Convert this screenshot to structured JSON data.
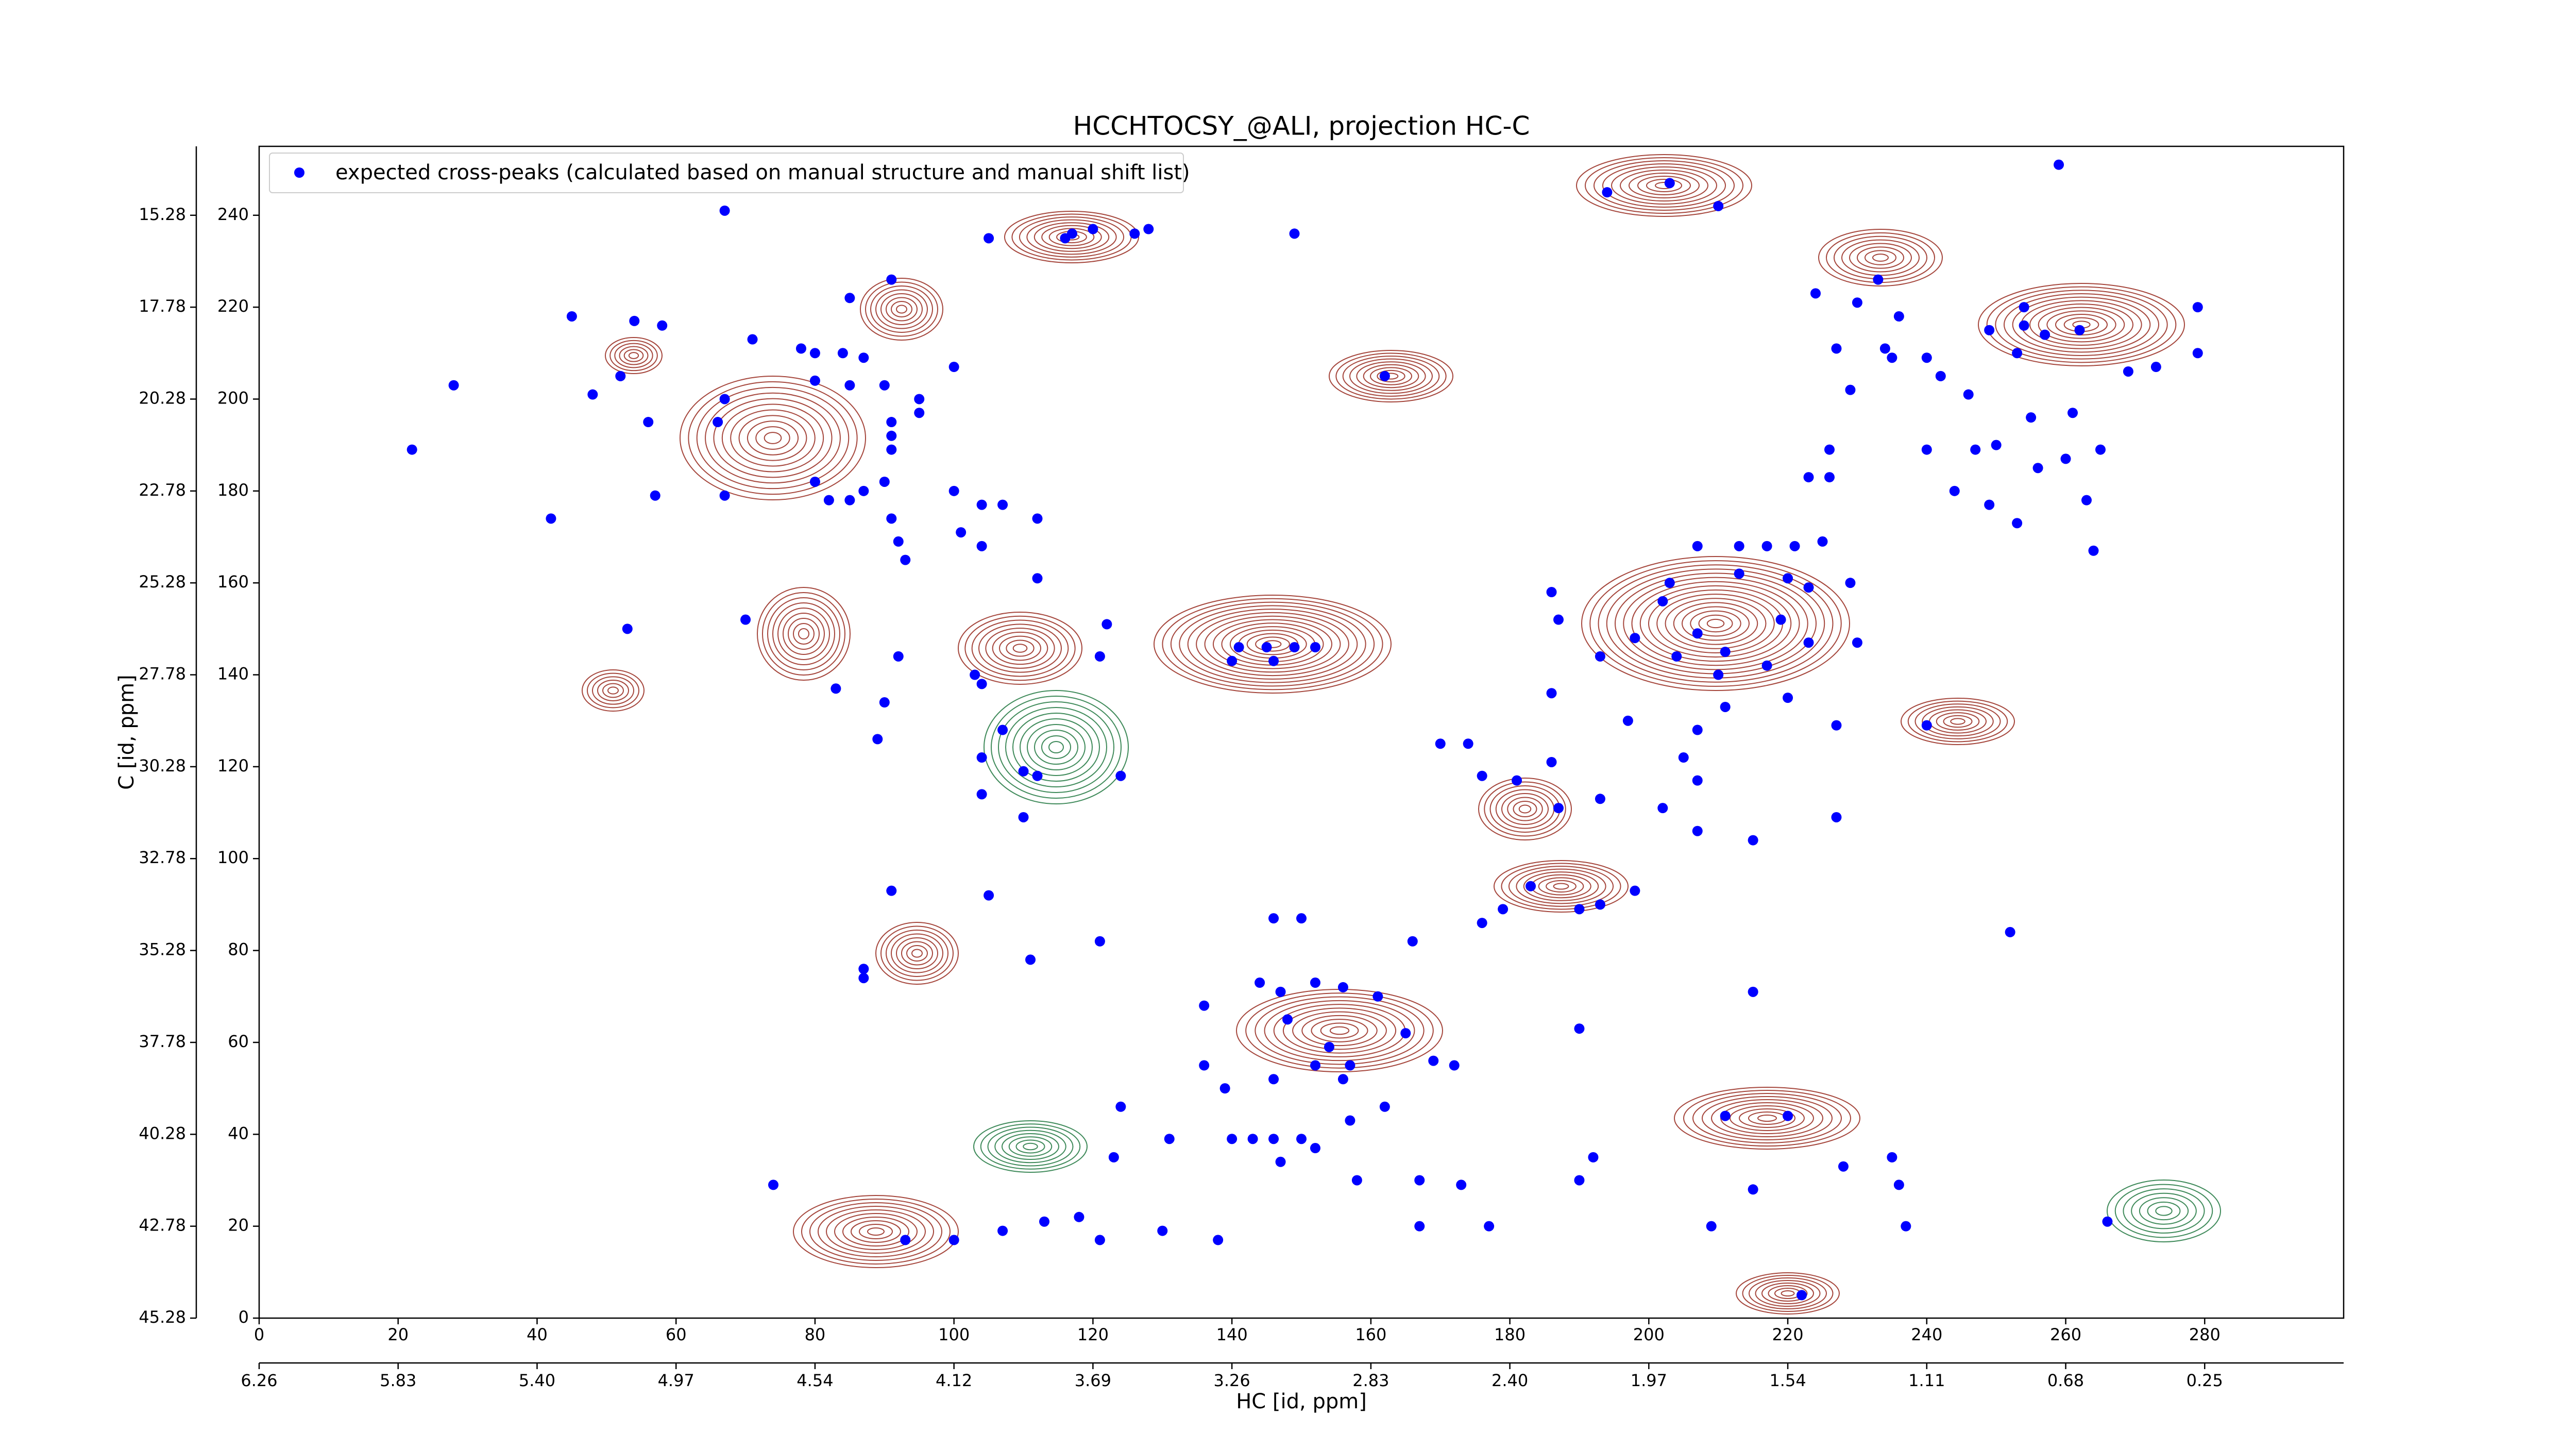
{
  "chart_data": {
    "type": "scatter",
    "title": "HCCHTOCSY_@ALI, projection HC-C",
    "xlabel": "HC [id, ppm]",
    "ylabel": "C [id, ppm]",
    "xlim": [
      0,
      300
    ],
    "ylim": [
      0,
      255
    ],
    "xticks": [
      0,
      20,
      40,
      60,
      80,
      100,
      120,
      140,
      160,
      180,
      200,
      220,
      240,
      260,
      280
    ],
    "yticks": [
      0,
      20,
      40,
      60,
      80,
      100,
      120,
      140,
      160,
      180,
      200,
      220,
      240
    ],
    "x2ticks": [
      {
        "value": 0,
        "label": "6.26"
      },
      {
        "value": 20,
        "label": "5.83"
      },
      {
        "value": 40,
        "label": "5.40"
      },
      {
        "value": 60,
        "label": "4.97"
      },
      {
        "value": 80,
        "label": "4.54"
      },
      {
        "value": 100,
        "label": "4.12"
      },
      {
        "value": 120,
        "label": "3.69"
      },
      {
        "value": 140,
        "label": "3.26"
      },
      {
        "value": 160,
        "label": "2.83"
      },
      {
        "value": 180,
        "label": "2.40"
      },
      {
        "value": 200,
        "label": "1.97"
      },
      {
        "value": 220,
        "label": "1.54"
      },
      {
        "value": 240,
        "label": "1.11"
      },
      {
        "value": 260,
        "label": "0.68"
      },
      {
        "value": 280,
        "label": "0.25"
      }
    ],
    "y2ticks": [
      {
        "value": 240,
        "label": "15.28"
      },
      {
        "value": 220,
        "label": "17.78"
      },
      {
        "value": 200,
        "label": "20.28"
      },
      {
        "value": 180,
        "label": "22.78"
      },
      {
        "value": 160,
        "label": "25.28"
      },
      {
        "value": 140,
        "label": "27.78"
      },
      {
        "value": 120,
        "label": "30.28"
      },
      {
        "value": 100,
        "label": "32.78"
      },
      {
        "value": 80,
        "label": "35.28"
      },
      {
        "value": 60,
        "label": "37.78"
      },
      {
        "value": 40,
        "label": "40.28"
      },
      {
        "value": 20,
        "label": "42.78"
      },
      {
        "value": 0,
        "label": "45.28"
      }
    ],
    "legend": "upper left",
    "series": [
      {
        "name": "expected cross-peaks (calculated based on manual structure and manual shift list)",
        "color": "#0000ff",
        "x": [
          67,
          105,
          116,
          117,
          120,
          126,
          128,
          149,
          45,
          54,
          58,
          52,
          71,
          28,
          48,
          56,
          22,
          42,
          57,
          67,
          66,
          67,
          70,
          53,
          85,
          91,
          78,
          80,
          84,
          87,
          80,
          85,
          90,
          95,
          95,
          91,
          91,
          91,
          90,
          87,
          82,
          80,
          85,
          91,
          92,
          93,
          92,
          83,
          90,
          89,
          100,
          100,
          104,
          107,
          101,
          112,
          104,
          112,
          122,
          121,
          103,
          104,
          107,
          104,
          110,
          112,
          104,
          110,
          124,
          91,
          105,
          87,
          87,
          111,
          121,
          140,
          141,
          145,
          152,
          146,
          149,
          162,
          194,
          203,
          210,
          259,
          224,
          230,
          233,
          236,
          234,
          227,
          229,
          235,
          240,
          242,
          246,
          249,
          254,
          254,
          257,
          262,
          253,
          279,
          279,
          273,
          269,
          265,
          261,
          260,
          256,
          250,
          247,
          255,
          244,
          249,
          253,
          263,
          240,
          223,
          226,
          226,
          264,
          213,
          217,
          221,
          225,
          220,
          223,
          229,
          213,
          207,
          203,
          202,
          207,
          211,
          219,
          223,
          230,
          217,
          210,
          204,
          198,
          193,
          186,
          187,
          211,
          220,
          207,
          205,
          207,
          202,
          207,
          197,
          193,
          227,
          227,
          240,
          215,
          186,
          170,
          174,
          186,
          181,
          176,
          187,
          183,
          190,
          193,
          198,
          179,
          176,
          166,
          146,
          150,
          136,
          144,
          147,
          152,
          156,
          161,
          148,
          154,
          152,
          157,
          165,
          169,
          172,
          162,
          156,
          146,
          139,
          157,
          140,
          143,
          146,
          150,
          152,
          147,
          158,
          167,
          173,
          167,
          177,
          215,
          215,
          209,
          237,
          211,
          220,
          192,
          190,
          228,
          235,
          236,
          131,
          124,
          136,
          123,
          118,
          121,
          113,
          107,
          100,
          93,
          130,
          138,
          74,
          222,
          190,
          252,
          266
        ],
        "values": [
          241,
          235,
          235,
          236,
          237,
          236,
          237,
          236,
          218,
          217,
          216,
          205,
          213,
          203,
          201,
          195,
          189,
          174,
          179,
          179,
          195,
          200,
          152,
          150,
          222,
          226,
          211,
          210,
          210,
          209,
          204,
          203,
          203,
          200,
          197,
          195,
          192,
          189,
          182,
          180,
          178,
          182,
          178,
          174,
          169,
          165,
          144,
          137,
          134,
          126,
          207,
          180,
          177,
          177,
          171,
          174,
          168,
          161,
          151,
          144,
          140,
          138,
          128,
          122,
          119,
          118,
          114,
          109,
          118,
          93,
          92,
          76,
          74,
          78,
          82,
          143,
          146,
          146,
          146,
          143,
          146,
          205,
          245,
          247,
          242,
          251,
          223,
          221,
          226,
          218,
          211,
          211,
          202,
          209,
          209,
          205,
          201,
          215,
          220,
          216,
          214,
          215,
          210,
          220,
          210,
          207,
          206,
          189,
          197,
          187,
          185,
          190,
          189,
          196,
          180,
          177,
          173,
          178,
          189,
          183,
          183,
          189,
          167,
          168,
          168,
          168,
          169,
          161,
          159,
          160,
          162,
          168,
          160,
          156,
          149,
          145,
          152,
          147,
          147,
          142,
          140,
          144,
          148,
          144,
          158,
          152,
          133,
          135,
          128,
          122,
          117,
          111,
          106,
          130,
          113,
          129,
          109,
          129,
          104,
          136,
          125,
          125,
          121,
          117,
          118,
          111,
          94,
          89,
          90,
          93,
          89,
          86,
          82,
          87,
          87,
          68,
          73,
          71,
          73,
          72,
          70,
          65,
          59,
          55,
          55,
          62,
          56,
          55,
          46,
          52,
          52,
          50,
          43,
          39,
          39,
          39,
          39,
          37,
          34,
          30,
          30,
          29,
          20,
          20,
          71,
          28,
          20,
          20,
          44,
          44,
          35,
          30,
          33,
          35,
          29,
          39,
          46,
          55,
          35,
          22,
          17,
          21,
          19,
          17,
          17,
          19,
          17,
          29,
          5,
          63,
          84,
          21
        ]
      }
    ]
  }
}
